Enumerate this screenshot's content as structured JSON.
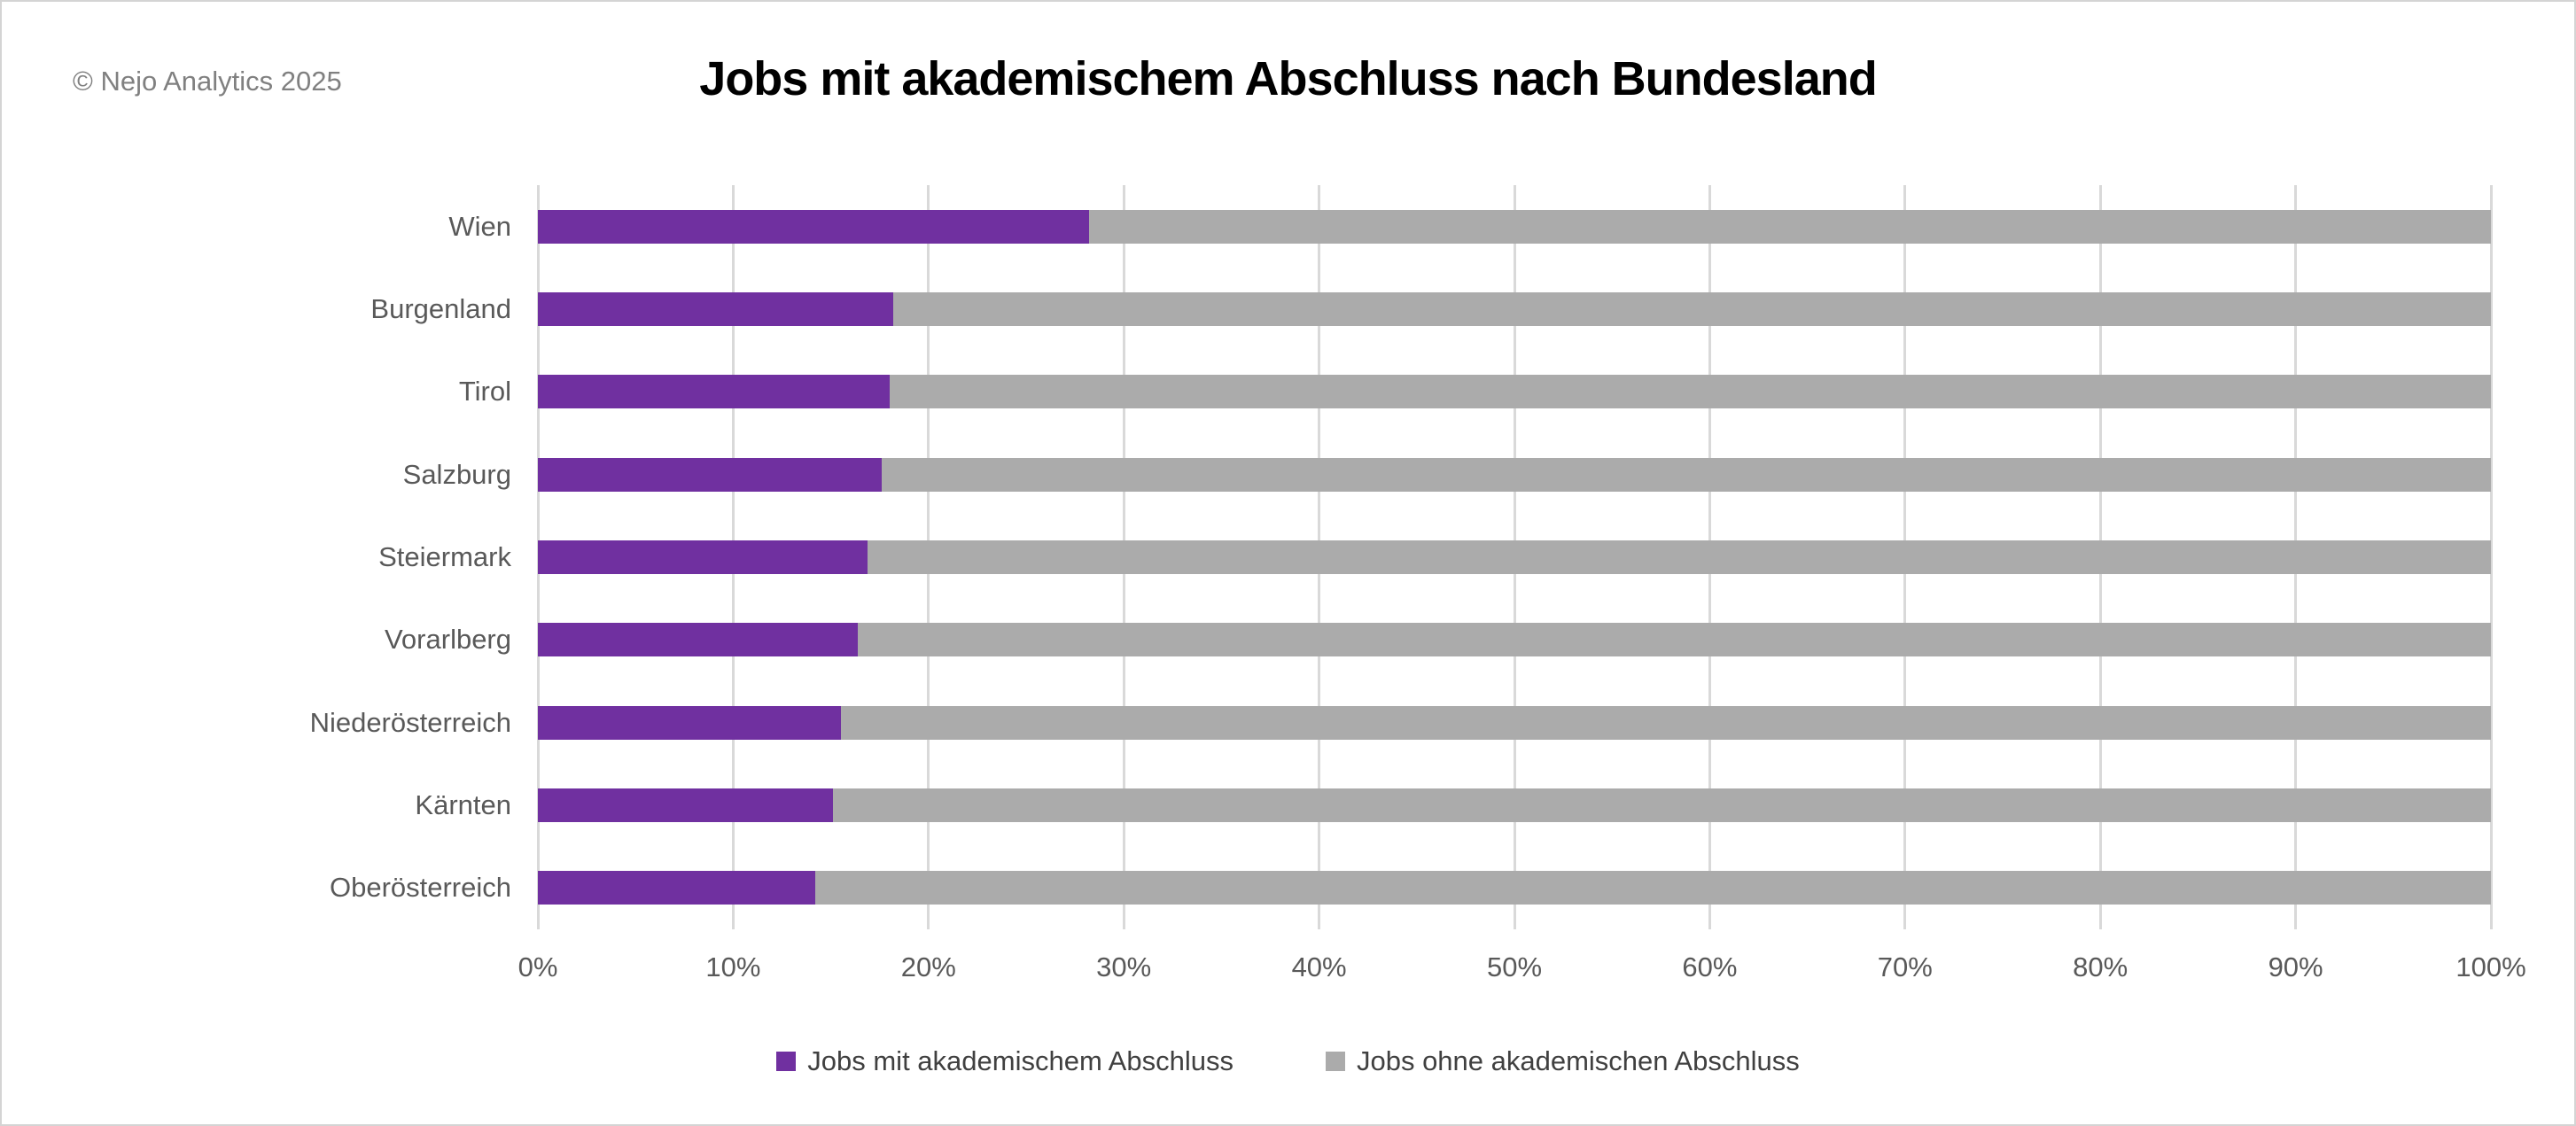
{
  "meta": {
    "copyright": "© Nejo Analytics 2025"
  },
  "chart_data": {
    "type": "bar",
    "orientation": "horizontal",
    "stacked": true,
    "stack_total_percent": 100,
    "title": "Jobs mit akademischem Abschluss nach Bundesland",
    "categories": [
      "Wien",
      "Burgenland",
      "Tirol",
      "Salzburg",
      "Steiermark",
      "Vorarlberg",
      "Niederösterreich",
      "Kärnten",
      "Oberösterreich"
    ],
    "series": [
      {
        "name": "Jobs mit akademischem Abschluss",
        "color": "#7030A0",
        "values": [
          28.2,
          18.2,
          18.0,
          17.6,
          16.9,
          16.4,
          15.5,
          15.1,
          14.2
        ]
      },
      {
        "name": "Jobs ohne akademischen Abschluss",
        "color": "#ABABAB",
        "values": [
          71.8,
          81.8,
          82.0,
          82.4,
          83.1,
          83.6,
          84.5,
          84.9,
          85.8
        ]
      }
    ],
    "x_axis": {
      "min": 0,
      "max": 100,
      "tick_labels": [
        "0%",
        "10%",
        "20%",
        "30%",
        "40%",
        "50%",
        "60%",
        "70%",
        "80%",
        "90%",
        "100%"
      ]
    },
    "y_axis": {
      "label": ""
    },
    "grid": "vertical",
    "gridline_color": "#D9D9D9",
    "legend": {
      "position": "bottom"
    }
  }
}
